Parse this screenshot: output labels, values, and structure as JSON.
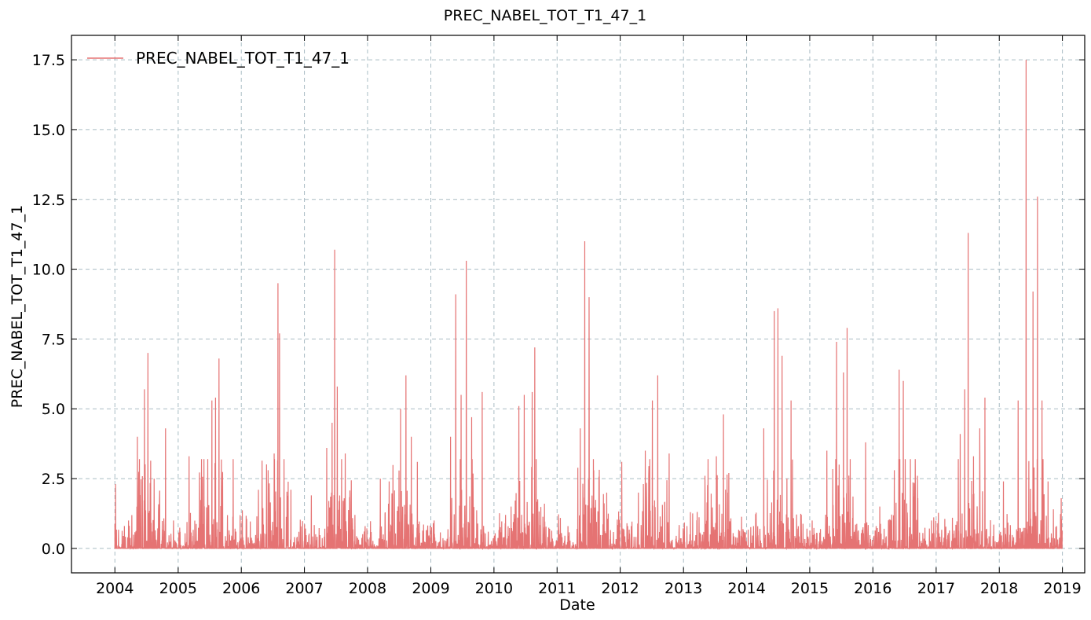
{
  "chart_data": {
    "type": "line",
    "title": "PREC_NABEL_TOT_T1_47_1",
    "xlabel": "Date",
    "ylabel": "PREC_NABEL_TOT_T1_47_1",
    "x_ticks": [
      "2004",
      "2005",
      "2006",
      "2007",
      "2008",
      "2009",
      "2010",
      "2011",
      "2012",
      "2013",
      "2014",
      "2015",
      "2016",
      "2017",
      "2018",
      "2019"
    ],
    "y_ticks": [
      "0.0",
      "2.5",
      "5.0",
      "7.5",
      "10.0",
      "12.5",
      "15.0",
      "17.5"
    ],
    "xlim": [
      "2003-04-25",
      "2019-05-10"
    ],
    "ylim": [
      -0.875,
      18.375
    ],
    "grid": true,
    "legend_position": "top-left",
    "colors": {
      "series": "#e57373"
    },
    "series": [
      {
        "name": "PREC_NABEL_TOT_T1_47_1",
        "peaks": [
          [
            "2004-01-05",
            2.3
          ],
          [
            "2004-03-20",
            1.0
          ],
          [
            "2004-05-10",
            4.0
          ],
          [
            "2004-06-20",
            5.7
          ],
          [
            "2004-07-10",
            7.0
          ],
          [
            "2004-08-15",
            2.5
          ],
          [
            "2004-10-20",
            4.3
          ],
          [
            "2004-12-05",
            1.0
          ],
          [
            "2005-03-05",
            3.3
          ],
          [
            "2005-05-15",
            1.8
          ],
          [
            "2005-07-15",
            5.3
          ],
          [
            "2005-08-05",
            5.4
          ],
          [
            "2005-08-25",
            6.8
          ],
          [
            "2005-11-15",
            3.2
          ],
          [
            "2006-04-10",
            2.1
          ],
          [
            "2006-06-05",
            2.8
          ],
          [
            "2006-07-10",
            3.4
          ],
          [
            "2006-08-01",
            9.5
          ],
          [
            "2006-08-10",
            7.7
          ],
          [
            "2006-09-05",
            3.2
          ],
          [
            "2006-10-15",
            2.1
          ],
          [
            "2007-02-10",
            1.9
          ],
          [
            "2007-05-10",
            3.6
          ],
          [
            "2007-06-10",
            4.5
          ],
          [
            "2007-06-25",
            10.7
          ],
          [
            "2007-07-10",
            5.8
          ],
          [
            "2007-08-25",
            3.4
          ],
          [
            "2007-10-20",
            1.2
          ],
          [
            "2008-03-15",
            2.5
          ],
          [
            "2008-05-05",
            2.4
          ],
          [
            "2008-07-10",
            5.0
          ],
          [
            "2008-08-10",
            6.2
          ],
          [
            "2008-09-10",
            4.0
          ],
          [
            "2008-10-15",
            3.1
          ],
          [
            "2009-01-20",
            1.0
          ],
          [
            "2009-04-25",
            4.0
          ],
          [
            "2009-05-25",
            9.1
          ],
          [
            "2009-06-25",
            5.5
          ],
          [
            "2009-07-25",
            10.3
          ],
          [
            "2009-08-25",
            4.7
          ],
          [
            "2009-10-25",
            5.6
          ],
          [
            "2010-04-10",
            1.5
          ],
          [
            "2010-05-25",
            5.1
          ],
          [
            "2010-06-25",
            5.5
          ],
          [
            "2010-08-10",
            5.6
          ],
          [
            "2010-08-25",
            7.2
          ],
          [
            "2010-10-20",
            1.6
          ],
          [
            "2011-03-05",
            0.8
          ],
          [
            "2011-05-15",
            4.3
          ],
          [
            "2011-06-10",
            11.0
          ],
          [
            "2011-07-05",
            9.0
          ],
          [
            "2011-08-01",
            2.8
          ],
          [
            "2011-10-15",
            2.0
          ],
          [
            "2012-01-10",
            3.1
          ],
          [
            "2012-03-05",
            0.8
          ],
          [
            "2012-04-15",
            2.0
          ],
          [
            "2012-05-25",
            3.5
          ],
          [
            "2012-07-05",
            5.3
          ],
          [
            "2012-08-05",
            6.2
          ],
          [
            "2012-10-10",
            3.4
          ],
          [
            "2013-02-10",
            1.3
          ],
          [
            "2013-05-05",
            2.6
          ],
          [
            "2013-07-10",
            3.3
          ],
          [
            "2013-08-20",
            4.8
          ],
          [
            "2013-09-20",
            2.7
          ],
          [
            "2014-02-10",
            0.8
          ],
          [
            "2014-04-10",
            4.3
          ],
          [
            "2014-06-10",
            8.5
          ],
          [
            "2014-07-01",
            8.6
          ],
          [
            "2014-07-25",
            6.9
          ],
          [
            "2014-09-15",
            5.3
          ],
          [
            "2015-01-15",
            1.0
          ],
          [
            "2015-04-10",
            3.5
          ],
          [
            "2015-06-05",
            7.4
          ],
          [
            "2015-07-15",
            6.3
          ],
          [
            "2015-08-05",
            7.9
          ],
          [
            "2015-11-20",
            3.8
          ],
          [
            "2016-02-10",
            1.5
          ],
          [
            "2016-04-15",
            1.0
          ],
          [
            "2016-06-01",
            6.4
          ],
          [
            "2016-06-25",
            6.0
          ],
          [
            "2016-08-05",
            3.2
          ],
          [
            "2016-09-15",
            2.6
          ],
          [
            "2016-12-05",
            1.0
          ],
          [
            "2017-04-05",
            1.1
          ],
          [
            "2017-05-20",
            4.1
          ],
          [
            "2017-06-15",
            5.7
          ],
          [
            "2017-07-05",
            11.3
          ],
          [
            "2017-08-05",
            3.3
          ],
          [
            "2017-09-10",
            4.3
          ],
          [
            "2017-10-10",
            5.4
          ],
          [
            "2018-01-25",
            2.4
          ],
          [
            "2018-04-20",
            5.3
          ],
          [
            "2018-06-05",
            17.5
          ],
          [
            "2018-07-15",
            9.2
          ],
          [
            "2018-08-10",
            12.6
          ],
          [
            "2018-09-05",
            5.3
          ],
          [
            "2018-10-10",
            2.4
          ],
          [
            "2018-11-10",
            1.4
          ],
          [
            "2018-12-25",
            1.8
          ]
        ]
      }
    ]
  }
}
